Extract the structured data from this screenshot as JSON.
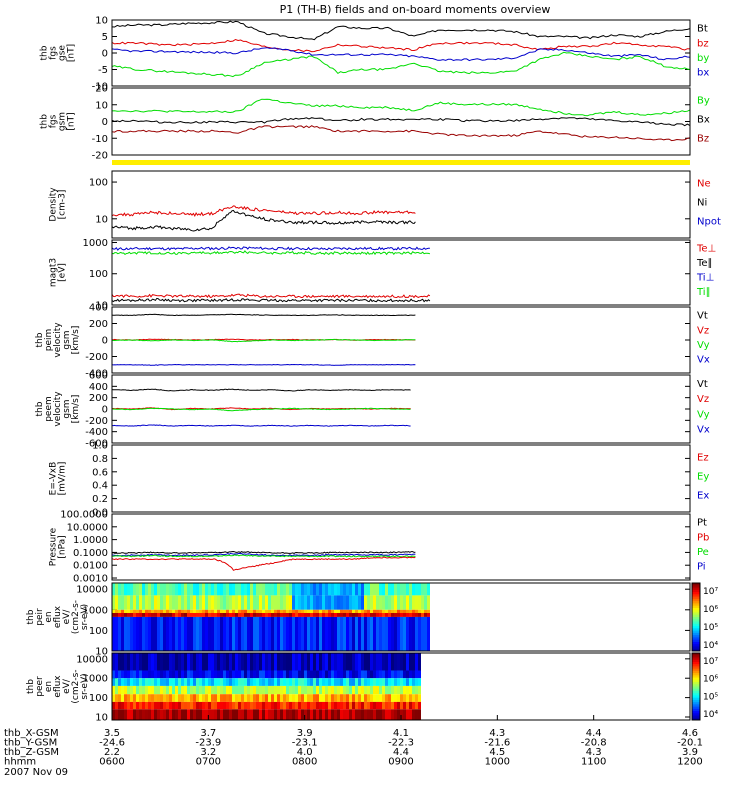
{
  "title": "P1 (TH-B) fields and on-board moments overview",
  "date_label": "2007 Nov 09",
  "colors": {
    "black": "#000000",
    "red": "#e00000",
    "green": "#00dd00",
    "blue": "#0000cc",
    "yellow": "#ffee00",
    "darkred": "#990000",
    "axis": "#000000"
  },
  "chart_data": [
    {
      "type": "line",
      "id": "fgs-gse",
      "ylabel": [
        "thb",
        "fgs",
        "gse",
        "[nT]"
      ],
      "ylim": [
        -10,
        10
      ],
      "yticks": [
        "10",
        "5",
        "0",
        "-5",
        "-10"
      ],
      "legend": [
        "Bt",
        "bz",
        "by",
        "bx"
      ],
      "series": [
        {
          "name": "Bt",
          "color": "black",
          "values": [
            8,
            8.5,
            8.5,
            9,
            9.2,
            9.5,
            6,
            5,
            4,
            8,
            7.5,
            7.5,
            5,
            7,
            7,
            7,
            6.5,
            5,
            5,
            4.5,
            5.5,
            5,
            6.5,
            7.5
          ]
        },
        {
          "name": "bz",
          "color": "red",
          "values": [
            3,
            3,
            2.5,
            2.5,
            3,
            4,
            2,
            1,
            0.5,
            2.5,
            2,
            1.5,
            1,
            3,
            3,
            3,
            2.5,
            1,
            2,
            2,
            3,
            2.5,
            2,
            1
          ]
        },
        {
          "name": "by",
          "color": "green",
          "values": [
            -4,
            -5,
            -5.5,
            -6,
            -6.5,
            -7,
            -3,
            -2,
            -1,
            -6,
            -5,
            -5,
            -3,
            -5.5,
            -6,
            -6,
            -5.5,
            -2,
            0,
            -1,
            -2,
            -1,
            -4,
            -5
          ]
        },
        {
          "name": "bx",
          "color": "blue",
          "values": [
            1,
            0.5,
            0.5,
            0.3,
            0.2,
            0,
            1.5,
            1,
            -0.5,
            -0.5,
            -0.5,
            -0.5,
            -1,
            -2,
            -2,
            -2,
            -1.5,
            1,
            1,
            0,
            -1,
            -0.5,
            -2,
            -1
          ]
        }
      ]
    },
    {
      "type": "line",
      "id": "fgs-gsm",
      "ylabel": [
        "thb",
        "fgs",
        "gsm",
        "[nT]"
      ],
      "ylim": [
        -25,
        20
      ],
      "yticks": [
        "20",
        "10",
        "0",
        "-10",
        "-20"
      ],
      "legend": [
        "By",
        "Bx",
        "Bz"
      ],
      "series": [
        {
          "name": "By",
          "color": "green",
          "values": [
            5,
            4.5,
            4.5,
            4,
            4,
            4,
            13,
            10,
            8,
            8,
            7,
            7,
            5,
            10,
            9,
            9,
            9,
            6,
            3,
            2,
            4,
            2,
            3,
            5
          ]
        },
        {
          "name": "Bx",
          "color": "black",
          "values": [
            -2,
            -2,
            -3,
            -3,
            -3,
            -3,
            -3,
            -1,
            0,
            -2,
            -1,
            -1,
            -1,
            -1,
            -2,
            -2,
            -2,
            -1,
            0,
            -1,
            -2,
            -3,
            -4,
            -5
          ]
        },
        {
          "name": "Bz",
          "color": "darkred",
          "values": [
            -9,
            -9,
            -9,
            -9,
            -9,
            -10,
            -6,
            -6,
            -6,
            -9,
            -9,
            -9,
            -9,
            -11,
            -12,
            -12,
            -12,
            -9,
            -11,
            -13,
            -13,
            -14,
            -15,
            -14
          ]
        }
      ]
    },
    {
      "type": "line",
      "id": "density",
      "ylabel": [
        "Density",
        "[cm-3]"
      ],
      "scale": "log",
      "ylim": [
        3,
        200
      ],
      "yticks": [
        "100",
        "10"
      ],
      "legend": [
        "Ne",
        "Ni",
        "Npot"
      ],
      "data_end_hour": 9.15,
      "series": [
        {
          "name": "Ne",
          "color": "red",
          "values": [
            13,
            13,
            15,
            14,
            13,
            14,
            22,
            18,
            16,
            14,
            14,
            15,
            14,
            15,
            15,
            15
          ]
        },
        {
          "name": "Ni",
          "color": "black",
          "values": [
            6,
            5.5,
            6,
            5.5,
            5,
            5.5,
            16,
            11,
            9,
            8,
            8,
            7.5,
            8,
            8.5,
            8,
            8
          ]
        }
      ]
    },
    {
      "type": "line",
      "id": "temperature",
      "ylabel": [
        "magt3",
        "[eV]"
      ],
      "scale": "log",
      "ylim": [
        10,
        1200
      ],
      "yticks": [
        "1000",
        "100",
        "10"
      ],
      "legend": [
        "Te⊥",
        "Te∥",
        "Ti⊥",
        "Ti∥"
      ],
      "data_end_hour": 9.3,
      "series": [
        {
          "name": "Ti⊥",
          "color": "blue",
          "values": [
            620,
            630,
            640,
            620,
            650,
            640,
            680,
            650,
            630,
            640,
            620,
            640,
            640,
            630,
            640,
            650
          ]
        },
        {
          "name": "Ti∥",
          "color": "green",
          "values": [
            450,
            460,
            470,
            450,
            470,
            460,
            500,
            470,
            460,
            470,
            450,
            460,
            460,
            450,
            460,
            470
          ]
        },
        {
          "name": "Te⊥",
          "color": "red",
          "values": [
            20,
            19,
            20,
            19,
            19,
            19,
            21,
            19,
            19,
            19,
            19,
            19,
            19,
            19,
            19,
            19
          ]
        },
        {
          "name": "Te∥",
          "color": "black",
          "values": [
            14,
            14,
            15,
            14,
            14,
            14,
            15,
            14,
            14,
            14,
            14,
            14,
            14,
            14,
            14,
            14
          ]
        }
      ]
    },
    {
      "type": "line",
      "id": "peim-velocity",
      "ylabel": [
        "thb",
        "peim",
        "velocity",
        "gsm",
        "[km/s]"
      ],
      "ylim": [
        -400,
        400
      ],
      "yticks": [
        "400",
        "200",
        "0",
        "-200",
        "-400"
      ],
      "legend": [
        "Vt",
        "Vz",
        "Vy",
        "Vx"
      ],
      "data_end_hour": 9.15,
      "series": [
        {
          "name": "Vt",
          "color": "black",
          "values": [
            300,
            300,
            310,
            300,
            300,
            305,
            310,
            305,
            300,
            300,
            300,
            305,
            300,
            300,
            300,
            300
          ]
        },
        {
          "name": "Vz",
          "color": "red",
          "values": [
            5,
            0,
            10,
            5,
            0,
            5,
            10,
            0,
            5,
            5,
            0,
            5,
            0,
            5,
            5,
            0
          ]
        },
        {
          "name": "Vy",
          "color": "green",
          "values": [
            -5,
            0,
            -10,
            0,
            -5,
            0,
            -20,
            -10,
            0,
            -5,
            0,
            5,
            0,
            -5,
            0,
            5
          ]
        },
        {
          "name": "Vx",
          "color": "blue",
          "values": [
            -300,
            -300,
            -305,
            -300,
            -300,
            -300,
            -300,
            -300,
            -300,
            -300,
            -300,
            -305,
            -300,
            -300,
            -300,
            -300
          ]
        }
      ]
    },
    {
      "type": "line",
      "id": "peem-velocity",
      "ylabel": [
        "thb",
        "peem",
        "velocity",
        "gsm",
        "[km/s]"
      ],
      "ylim": [
        -600,
        600
      ],
      "yticks": [
        "600",
        "400",
        "200",
        "0",
        "-200",
        "-400",
        "-600"
      ],
      "legend": [
        "Vt",
        "Vz",
        "Vy",
        "Vx"
      ],
      "data_end_hour": 9.1,
      "series": [
        {
          "name": "Vt",
          "color": "black",
          "values": [
            340,
            330,
            350,
            320,
            340,
            330,
            350,
            330,
            340,
            320,
            340,
            330,
            340,
            330,
            340,
            335
          ]
        },
        {
          "name": "Vz",
          "color": "red",
          "values": [
            10,
            0,
            20,
            -10,
            10,
            0,
            20,
            0,
            10,
            -10,
            10,
            0,
            10,
            0,
            10,
            5
          ]
        },
        {
          "name": "Vy",
          "color": "green",
          "values": [
            0,
            -10,
            10,
            0,
            -10,
            0,
            -30,
            -10,
            0,
            10,
            0,
            -10,
            0,
            10,
            0,
            -5
          ]
        },
        {
          "name": "Vx",
          "color": "blue",
          "values": [
            -290,
            -300,
            -280,
            -300,
            -290,
            -300,
            -290,
            -300,
            -290,
            -300,
            -290,
            -300,
            -290,
            -300,
            -290,
            -295
          ]
        }
      ]
    },
    {
      "type": "line",
      "id": "efield",
      "ylabel": [
        "E=-VxB",
        "[mV/m]"
      ],
      "ylim": [
        0,
        1
      ],
      "yticks": [
        "1.0",
        "0.8",
        "0.6",
        "0.4",
        "0.2",
        "0.0"
      ],
      "legend": [
        "Ez",
        "Ey",
        "Ex"
      ],
      "series": []
    },
    {
      "type": "line",
      "id": "pressure",
      "ylabel": [
        "Pressure",
        "[nPa]"
      ],
      "scale": "log",
      "ylim": [
        0.0007,
        100
      ],
      "yticks": [
        "100.0000",
        "10.0000",
        "1.0000",
        "0.1000",
        "0.0100",
        "0.0010"
      ],
      "legend": [
        "Pt",
        "Pb",
        "Pe",
        "Pi"
      ],
      "data_end_hour": 9.15,
      "series": [
        {
          "name": "Pt",
          "color": "black",
          "values": [
            0.09,
            0.09,
            0.1,
            0.09,
            0.09,
            0.1,
            0.11,
            0.1,
            0.09,
            0.09,
            0.09,
            0.1,
            0.1,
            0.1,
            0.1,
            0.11
          ]
        },
        {
          "name": "Pi",
          "color": "blue",
          "values": [
            0.06,
            0.06,
            0.065,
            0.06,
            0.06,
            0.065,
            0.08,
            0.07,
            0.06,
            0.06,
            0.06,
            0.065,
            0.065,
            0.065,
            0.065,
            0.07
          ]
        },
        {
          "name": "Pe",
          "color": "green",
          "values": [
            0.05,
            0.05,
            0.055,
            0.05,
            0.05,
            0.05,
            0.06,
            0.055,
            0.05,
            0.05,
            0.05,
            0.05,
            0.05,
            0.05,
            0.05,
            0.05
          ]
        },
        {
          "name": "Pb",
          "color": "red",
          "values": [
            0.03,
            0.03,
            0.03,
            0.03,
            0.03,
            0.03,
            0.004,
            0.008,
            0.015,
            0.03,
            0.03,
            0.03,
            0.03,
            0.04,
            0.04,
            0.04
          ]
        }
      ]
    },
    {
      "type": "heatmap",
      "id": "peir-spectrogram",
      "ylabel": [
        "thb",
        "peir",
        "en",
        "eflux",
        "eV/",
        "(cm2-s-",
        "sr-eV)"
      ],
      "scale": "log",
      "ylim": [
        10,
        20000
      ],
      "yticks": [
        "10000",
        "1000",
        "100",
        "10"
      ],
      "colorbar_ticks": [
        "10⁷",
        "10⁶",
        "10⁵",
        "10⁴"
      ],
      "data_end_hour": 9.3,
      "bands": [
        {
          "from": 5000,
          "to": 20000,
          "level": 0.45
        },
        {
          "from": 1000,
          "to": 5000,
          "level": 0.55
        },
        {
          "from": 700,
          "to": 1000,
          "level": 0.72
        },
        {
          "from": 450,
          "to": 700,
          "level": 0.9
        },
        {
          "from": 10,
          "to": 450,
          "level": 0.15
        }
      ]
    },
    {
      "type": "heatmap",
      "id": "peer-spectrogram",
      "ylabel": [
        "thb",
        "peer",
        "en",
        "eflux",
        "eV/",
        "(cm2-s-",
        "sr-eV)"
      ],
      "scale": "log",
      "ylim": [
        7,
        20000
      ],
      "yticks": [
        "10000",
        "1000",
        "100",
        "10"
      ],
      "colorbar_ticks": [
        "10⁷",
        "10⁶",
        "10⁵",
        "10⁴"
      ],
      "data_end_hour": 9.2,
      "bands": [
        {
          "from": 2500,
          "to": 20000,
          "level": 0.05
        },
        {
          "from": 1000,
          "to": 2500,
          "level": 0.12
        },
        {
          "from": 400,
          "to": 1000,
          "level": 0.35
        },
        {
          "from": 150,
          "to": 400,
          "level": 0.55
        },
        {
          "from": 60,
          "to": 150,
          "level": 0.7
        },
        {
          "from": 25,
          "to": 60,
          "level": 0.85
        },
        {
          "from": 7,
          "to": 25,
          "level": 0.97
        }
      ]
    }
  ],
  "xaxis": {
    "range_hours": [
      6,
      12
    ],
    "row_labels": [
      "thb_X-GSM",
      "thb_Y-GSM",
      "thb_Z-GSM",
      "hhmm"
    ],
    "ticks": [
      {
        "hour": 6,
        "vals": [
          "3.5",
          "-24.6",
          "2.2",
          "0600"
        ]
      },
      {
        "hour": 7,
        "vals": [
          "3.7",
          "-23.9",
          "3.2",
          "0700"
        ]
      },
      {
        "hour": 8,
        "vals": [
          "3.9",
          "-23.1",
          "4.0",
          "0800"
        ]
      },
      {
        "hour": 9,
        "vals": [
          "4.1",
          "-22.3",
          "4.4",
          "0900"
        ]
      },
      {
        "hour": 10,
        "vals": [
          "4.3",
          "-21.6",
          "4.5",
          "1000"
        ]
      },
      {
        "hour": 11,
        "vals": [
          "4.4",
          "-20.8",
          "4.3",
          "1100"
        ]
      },
      {
        "hour": 12,
        "vals": [
          "4.6",
          "-20.1",
          "3.9",
          "1200"
        ]
      }
    ]
  }
}
